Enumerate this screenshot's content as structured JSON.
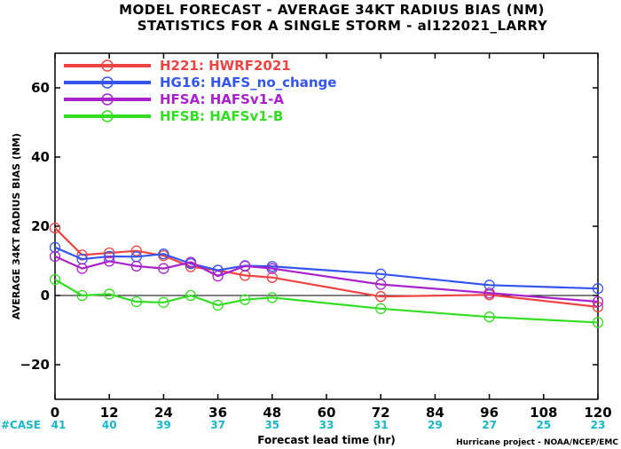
{
  "title_line1": "MODEL FORECAST - AVERAGE 34KT RADIUS BIAS (NM)",
  "title_line2": "STATISTICS FOR A SINGLE STORM - al122021_LARRY",
  "case_label": "#CASE",
  "credit": "Hurricane project - NOAA/NCEP/EMC",
  "chart_data": {
    "type": "line",
    "xlabel": "Forecast lead time (hr)",
    "ylabel": "AVERAGE 34KT RADIUS BIAS (NM)",
    "xlim": [
      0,
      120
    ],
    "ylim": [
      -30,
      70
    ],
    "x_ticks": [
      0,
      12,
      24,
      36,
      48,
      60,
      72,
      84,
      96,
      108,
      120
    ],
    "y_ticks": [
      -20,
      0,
      20,
      40,
      60
    ],
    "y_tick_labels": [
      "−20",
      "0",
      "20",
      "40",
      "60"
    ],
    "zero_line": true,
    "grid": false,
    "legend_position": "top-left",
    "cases": [
      41,
      40,
      39,
      37,
      35,
      33,
      31,
      29,
      27,
      25,
      23
    ],
    "series": [
      {
        "code": "H221",
        "name": "HWRF2021",
        "color": "#ee4444",
        "x": [
          0,
          6,
          12,
          18,
          24,
          30,
          36,
          42,
          48,
          72,
          96,
          120
        ],
        "y": [
          19.5,
          11.7,
          12.3,
          12.9,
          11.5,
          8.3,
          7.3,
          5.8,
          5.2,
          -0.3,
          0.2,
          -3.3
        ]
      },
      {
        "code": "HG16",
        "name": "HAFS_no_change",
        "color": "#3355ee",
        "x": [
          0,
          6,
          12,
          18,
          24,
          30,
          36,
          42,
          48,
          72,
          96,
          120
        ],
        "y": [
          13.9,
          10.5,
          11.3,
          11.2,
          12.0,
          9.2,
          7.3,
          8.6,
          8.4,
          6.2,
          3.0,
          2.0
        ]
      },
      {
        "code": "HFSA",
        "name": "HAFSv1-A",
        "color": "#aa22cc",
        "x": [
          0,
          6,
          12,
          18,
          24,
          30,
          36,
          42,
          48,
          72,
          96,
          120
        ],
        "y": [
          11.3,
          7.8,
          9.9,
          8.5,
          7.8,
          9.6,
          5.6,
          8.5,
          7.8,
          3.2,
          0.7,
          -1.8
        ]
      },
      {
        "code": "HFSB",
        "name": "HAFSv1-B",
        "color": "#33dd22",
        "x": [
          0,
          6,
          12,
          18,
          24,
          30,
          36,
          42,
          48,
          72,
          96,
          120
        ],
        "y": [
          4.6,
          0.0,
          0.4,
          -1.8,
          -2.0,
          0.0,
          -2.8,
          -1.2,
          -0.6,
          -3.8,
          -6.2,
          -7.8
        ]
      }
    ]
  }
}
